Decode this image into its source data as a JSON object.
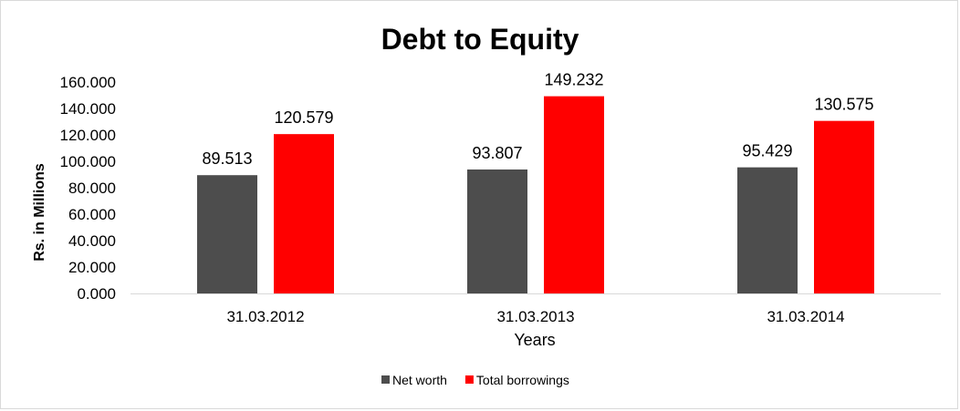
{
  "chart_data": {
    "type": "bar",
    "title": "Debt to Equity",
    "xlabel": "Years",
    "ylabel": "Rs. in Millions",
    "categories": [
      "31.03.2012",
      "31.03.2013",
      "31.03.2014"
    ],
    "series": [
      {
        "name": "Net worth",
        "color": "#4d4d4d",
        "values": [
          89.513,
          93.807,
          95.429
        ],
        "labels": [
          "89.513",
          "93.807",
          "95.429"
        ]
      },
      {
        "name": "Total borrowings",
        "color": "#ff0000",
        "values": [
          120.579,
          149.232,
          130.575
        ],
        "labels": [
          "120.579",
          "149.232",
          "130.575"
        ]
      }
    ],
    "ylim": [
      0,
      160
    ],
    "yticks": [
      0,
      20,
      40,
      60,
      80,
      100,
      120,
      140,
      160
    ],
    "ytick_labels": [
      "0.000",
      "20.000",
      "40.000",
      "60.000",
      "80.000",
      "100.000",
      "120.000",
      "140.000",
      "160.000"
    ],
    "grid": false,
    "legend_position": "bottom"
  }
}
